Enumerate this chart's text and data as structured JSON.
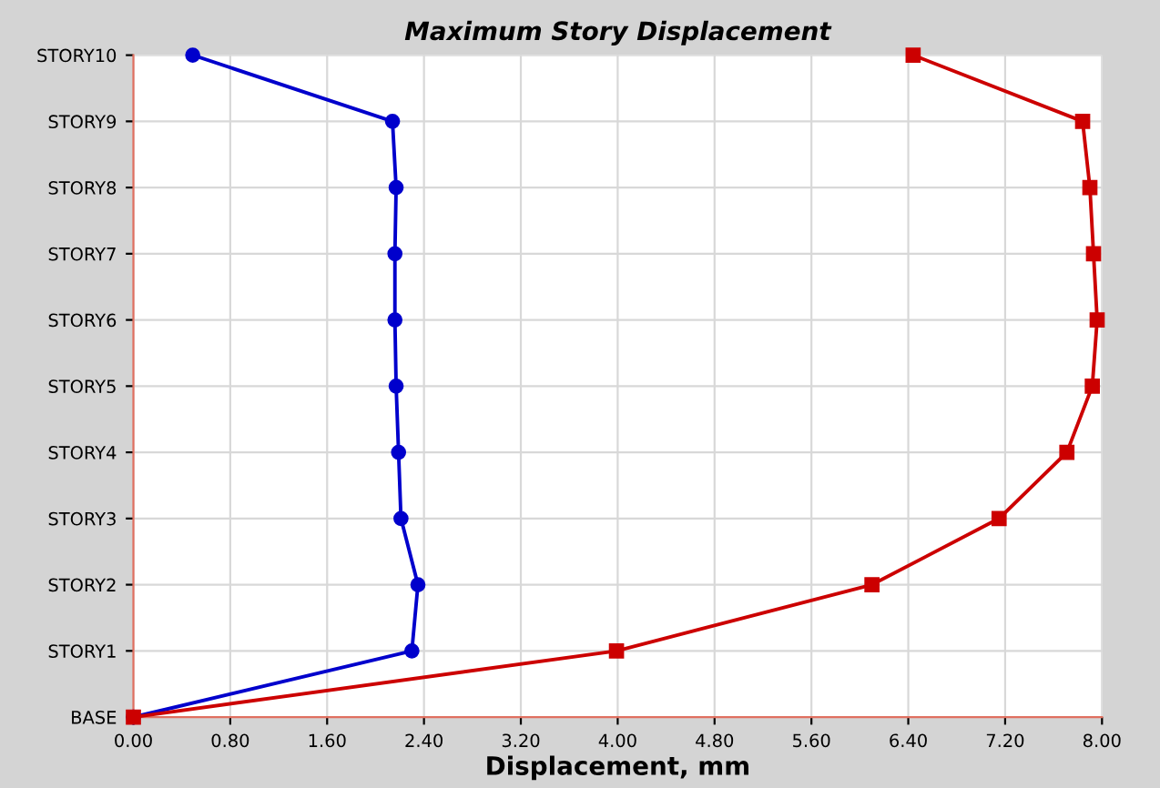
{
  "chart_data": {
    "type": "line",
    "title": "Maximum Story Displacement",
    "xlabel": "Displacement, mm",
    "orientation": "horizontal",
    "categories": [
      "STORY10",
      "STORY9",
      "STORY8",
      "STORY7",
      "STORY6",
      "STORY5",
      "STORY4",
      "STORY3",
      "STORY2",
      "STORY1",
      "BASE"
    ],
    "series": [
      {
        "color": "#0000cc",
        "marker": "circle",
        "values": [
          0.49,
          2.14,
          2.17,
          2.16,
          2.16,
          2.17,
          2.19,
          2.21,
          2.35,
          2.3,
          0
        ]
      },
      {
        "color": "#cc0000",
        "marker": "square",
        "values": [
          6.44,
          7.84,
          7.9,
          7.93,
          7.96,
          7.92,
          7.71,
          7.15,
          6.1,
          3.99,
          0
        ]
      }
    ],
    "xlim": [
      0,
      8
    ],
    "xticks": [
      {
        "value": 0,
        "label": "0.00"
      },
      {
        "value": 0.8,
        "label": "0.80"
      },
      {
        "value": 1.6,
        "label": "1.60"
      },
      {
        "value": 2.4,
        "label": "2.40"
      },
      {
        "value": 3.2,
        "label": "3.20"
      },
      {
        "value": 4,
        "label": "4.00"
      },
      {
        "value": 4.8,
        "label": "4.80"
      },
      {
        "value": 5.6,
        "label": "5.60"
      },
      {
        "value": 6.4,
        "label": "6.40"
      },
      {
        "value": 7.2,
        "label": "7.20"
      },
      {
        "value": 8,
        "label": "8.00"
      }
    ],
    "grid": true,
    "legend": false
  }
}
